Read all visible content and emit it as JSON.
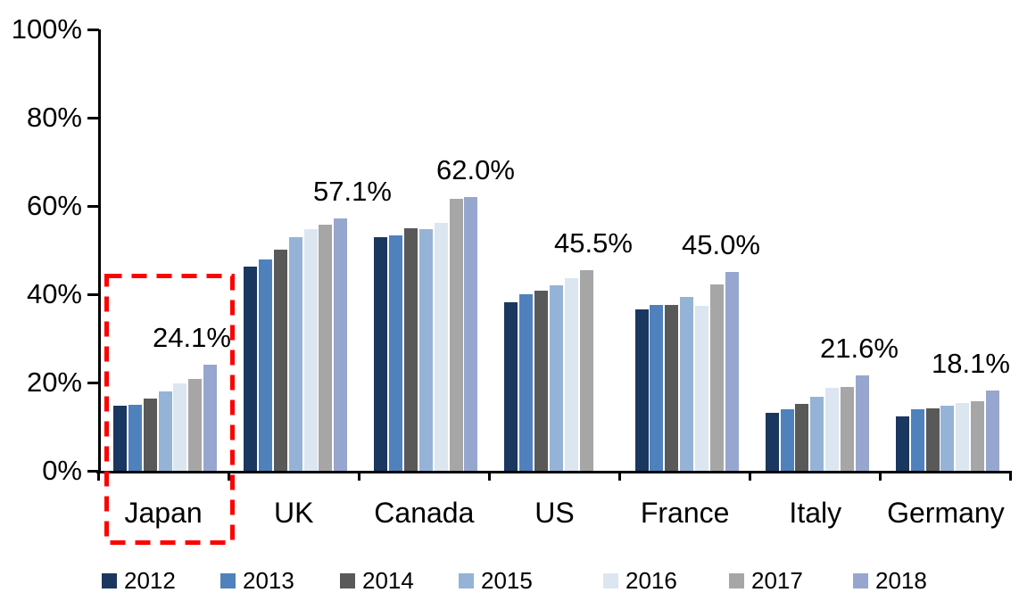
{
  "chart_data": {
    "type": "bar",
    "title": "",
    "categories": [
      "Japan",
      "UK",
      "Canada",
      "US",
      "France",
      "Italy",
      "Germany"
    ],
    "series": [
      {
        "name": "2012",
        "color": "#1A375F",
        "values": [
          14.8,
          46.3,
          53.0,
          38.2,
          36.5,
          13.2,
          12.4
        ]
      },
      {
        "name": "2013",
        "color": "#4F81BD",
        "values": [
          15.0,
          47.8,
          53.4,
          40.0,
          37.6,
          13.9,
          13.9
        ]
      },
      {
        "name": "2014",
        "color": "#595959",
        "values": [
          16.3,
          50.0,
          54.9,
          40.9,
          37.6,
          15.2,
          14.2
        ]
      },
      {
        "name": "2015",
        "color": "#95B3D7",
        "values": [
          17.9,
          53.0,
          54.7,
          42.0,
          39.3,
          16.7,
          14.7
        ]
      },
      {
        "name": "2016",
        "color": "#DCE6F1",
        "values": [
          19.8,
          54.8,
          56.2,
          43.6,
          37.3,
          18.8,
          15.3
        ]
      },
      {
        "name": "2017",
        "color": "#A6A6A6",
        "values": [
          20.9,
          55.8,
          61.6,
          45.5,
          42.2,
          18.9,
          15.7
        ]
      },
      {
        "name": "2018",
        "color": "#97A6CE",
        "values": [
          24.1,
          57.1,
          62.0,
          null,
          45.0,
          21.6,
          18.1
        ]
      }
    ],
    "data_labels": [
      "24.1%",
      "57.1%",
      "62.0%",
      "45.5%",
      "45.0%",
      "21.6%",
      "18.1%"
    ],
    "y_axis": {
      "min": 0,
      "max": 100,
      "tick_step": 20,
      "ticks": [
        "0%",
        "20%",
        "40%",
        "60%",
        "80%",
        "100%"
      ]
    },
    "grid": false,
    "legend_position": "bottom",
    "legend": [
      "2012",
      "2013",
      "2014",
      "2015",
      "2016",
      "2017",
      "2018"
    ],
    "annotations": [
      {
        "type": "dashed-box",
        "target": "Japan",
        "color": "#FF0000"
      }
    ]
  }
}
